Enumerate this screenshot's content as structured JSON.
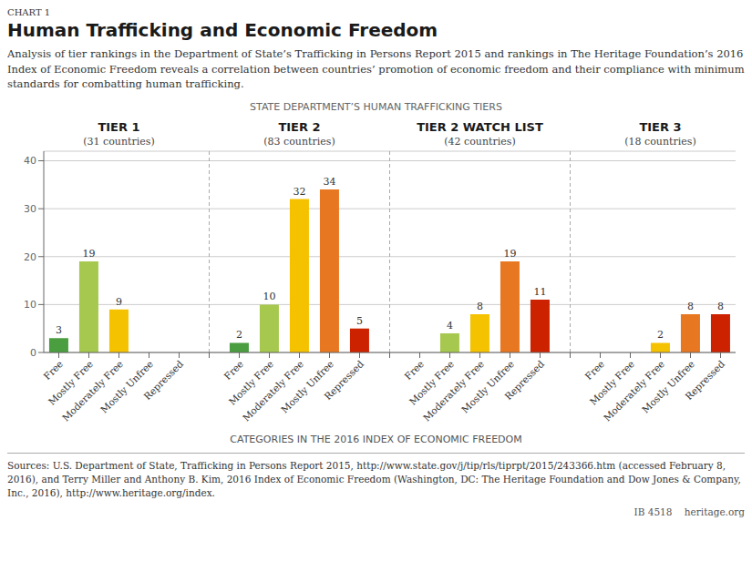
{
  "chart_data": {
    "type": "bar",
    "chart_label": "CHART 1",
    "title": "Human Trafficking and Economic Freedom",
    "subtitle": "Analysis of tier rankings in the Department of State’s Trafficking in Persons Report 2015 and rankings in The Heritage Foundation’s 2016 Index of Economic Freedom reveals a correlation between countries’ promotion of economic freedom and their compliance with minimum standards for combatting human trafficking.",
    "group_title": "STATE DEPARTMENT’S HUMAN TRAFFICKING TIERS",
    "x_label": "CATEGORIES IN THE 2016 INDEX OF ECONOMIC FREEDOM",
    "groups": [
      {
        "name": "TIER 1",
        "subtitle": "(31 countries)"
      },
      {
        "name": "TIER 2",
        "subtitle": "(83 countries)"
      },
      {
        "name": "TIER 2 WATCH LIST",
        "subtitle": "(42 countries)"
      },
      {
        "name": "TIER 3",
        "subtitle": "(18 countries)"
      }
    ],
    "categories": [
      "Free",
      "Mostly Free",
      "Moderately Free",
      "Mostly Unfree",
      "Repressed",
      "Free",
      "Mostly Free",
      "Moderately Free",
      "Mostly Unfree",
      "Repressed",
      "Free",
      "Mostly Free",
      "Moderately Free",
      "Mostly Unfree",
      "Repressed",
      "Free",
      "Mostly Free",
      "Moderately Free",
      "Mostly Unfree",
      "Repressed"
    ],
    "values": [
      3,
      19,
      9,
      0,
      0,
      2,
      10,
      32,
      34,
      5,
      0,
      4,
      8,
      19,
      11,
      0,
      0,
      2,
      8,
      8
    ],
    "colors": [
      "#4a9e3f",
      "#a6c84e",
      "#f5c200",
      "#e87722",
      "#cc2200",
      "#4a9e3f",
      "#a6c84e",
      "#f5c200",
      "#e87722",
      "#cc2200",
      "#4a9e3f",
      "#a6c84e",
      "#f5c200",
      "#e87722",
      "#cc2200",
      "#4a9e3f",
      "#a6c84e",
      "#f5c200",
      "#e87722",
      "#cc2200"
    ],
    "ylim": [
      0,
      42
    ],
    "yticks": [
      0,
      10,
      20,
      30,
      40
    ],
    "grid": true,
    "data_labels": true,
    "sources": "Sources: U.S. Department of State, Trafficking in Persons Report 2015, http://www.state.gov/j/tip/rls/tiprpt/2015/243366.htm (accessed February 8, 2016), and Terry Miller and Anthony B. Kim, 2016 Index of Economic Freedom (Washington, DC: The Heritage Foundation and Dow Jones & Company, Inc., 2016), http://www.heritage.org/index.",
    "footer": "IB 4518    heritage.org"
  }
}
